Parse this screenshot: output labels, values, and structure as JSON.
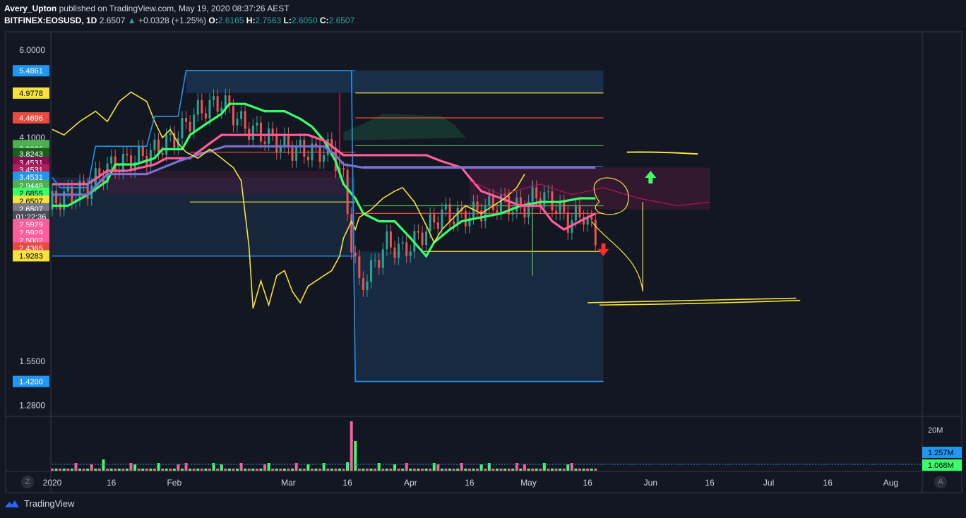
{
  "header": {
    "author": "Avery_Upton",
    "published_text": "published on TradingView.com, May 19, 2020 08:37:26 AEST",
    "symbol": "BITFINEX:EOSUSD, 1D",
    "last": "2.6507",
    "change": "+0.0328 (+1.25%)",
    "open_label": "O:",
    "open": "2.6165",
    "high_label": "H:",
    "high": "2.7563",
    "low_label": "L:",
    "low": "2.6050",
    "close_label": "C:",
    "close": "2.6507"
  },
  "footer": {
    "brand": "TradingView",
    "z_button": "Z",
    "a_button": "A"
  },
  "colors": {
    "background": "#131722",
    "up": "#26a69a",
    "down": "#ef5350",
    "green_line": "#39ff6a",
    "pink_line": "#ff5c9a",
    "purple_line": "#7b6fd0",
    "blue_band": "#2196f3",
    "yellow_line": "#f5e23d",
    "red_line": "#e84a3f"
  },
  "chart_data": {
    "type": "line",
    "symbol": "BITFINEX:EOSUSD",
    "interval": "1D",
    "y_scale": "log",
    "ylim": [
      1.22,
      6.5
    ],
    "y_ticks": [
      "6.0000",
      "4.1000",
      "1.5500",
      "1.2800"
    ],
    "x_ticks": [
      "2020",
      "16",
      "Feb",
      "Mar",
      "16",
      "Apr",
      "16",
      "May",
      "16",
      "Jun",
      "16",
      "Jul",
      "16",
      "Aug"
    ],
    "x_tick_days": [
      1,
      16,
      32,
      61,
      76,
      92,
      107,
      122,
      137,
      153,
      168,
      183,
      198,
      214
    ],
    "xlim": [
      1,
      222
    ],
    "price_tags": [
      {
        "value": 5.4861,
        "label": "5.4861",
        "color": "#2196f3"
      },
      {
        "value": 4.9778,
        "label": "4.9778",
        "color": "#f5e23d"
      },
      {
        "value": 4.4696,
        "label": "4.4696",
        "color": "#e84a3f"
      },
      {
        "value": 3.9613,
        "label": "3.9613",
        "color": "#4caf50"
      },
      {
        "value": 3.9036,
        "label": "3.9036",
        "color": "#4caf50"
      },
      {
        "value": 3.8243,
        "label": "3.8243",
        "color": "#1b5e20"
      },
      {
        "value": 3.68,
        "label": "3.4531",
        "color": "#880e4f"
      },
      {
        "value": 3.565,
        "label": "3.4531",
        "color": "#b01e5c"
      },
      {
        "value": 3.4531,
        "label": "3.4531",
        "color": "#2196f3"
      },
      {
        "value": 3.33,
        "label": "2.9448",
        "color": "#4caf50"
      },
      {
        "value": 3.22,
        "label": "2.6855",
        "color": "#39ff6a"
      },
      {
        "value": 3.11,
        "label": "2.6507",
        "color": "#f5e23d"
      },
      {
        "value": 3.01,
        "label": "2.6507",
        "color": "#787b86"
      },
      {
        "value": 2.91,
        "label": "01:22:36",
        "color": "#4a4e59"
      },
      {
        "value": 2.81,
        "label": "2.5929",
        "color": "#ff5c9a"
      },
      {
        "value": 2.715,
        "label": "2.5929",
        "color": "#ff5c9a"
      },
      {
        "value": 2.625,
        "label": "2.5002",
        "color": "#ff5c9a"
      },
      {
        "value": 2.538,
        "label": "2.4365",
        "color": "#e84a3f"
      },
      {
        "value": 2.453,
        "label": "1.9283",
        "color": "#f5e23d"
      },
      {
        "value": 1.42,
        "label": "1.4200",
        "color": "#2196f3"
      }
    ],
    "series": [
      {
        "name": "",
        "color": "#39ff6a",
        "values": [
          [
            1,
            3.05
          ],
          [
            5,
            3.05
          ],
          [
            10,
            3.2
          ],
          [
            15,
            3.4
          ],
          [
            17,
            3.65
          ],
          [
            22,
            3.65
          ],
          [
            27,
            3.75
          ],
          [
            29,
            3.9
          ],
          [
            34,
            3.9
          ],
          [
            36,
            4.15
          ],
          [
            40,
            4.35
          ],
          [
            44,
            4.55
          ],
          [
            46,
            4.75
          ],
          [
            50,
            4.75
          ],
          [
            55,
            4.6
          ],
          [
            60,
            4.6
          ],
          [
            64,
            4.45
          ],
          [
            67,
            4.3
          ],
          [
            70,
            4.05
          ],
          [
            73,
            3.7
          ],
          [
            75,
            3.35
          ],
          [
            78,
            3.15
          ],
          [
            80,
            2.95
          ],
          [
            84,
            2.85
          ],
          [
            88,
            2.85
          ],
          [
            92,
            2.65
          ],
          [
            96,
            2.45
          ],
          [
            98,
            2.6
          ],
          [
            102,
            2.75
          ],
          [
            105,
            2.85
          ],
          [
            110,
            2.9
          ],
          [
            115,
            2.95
          ],
          [
            120,
            3.05
          ],
          [
            125,
            3.1
          ],
          [
            130,
            3.1
          ],
          [
            135,
            3.15
          ],
          [
            139,
            3.15
          ]
        ]
      },
      {
        "name": "",
        "color": "#ff5c9a",
        "values": [
          [
            1,
            3.35
          ],
          [
            10,
            3.35
          ],
          [
            15,
            3.55
          ],
          [
            20,
            3.55
          ],
          [
            27,
            3.65
          ],
          [
            30,
            3.75
          ],
          [
            36,
            3.75
          ],
          [
            40,
            3.95
          ],
          [
            44,
            4.15
          ],
          [
            50,
            4.15
          ],
          [
            60,
            4.15
          ],
          [
            66,
            4.15
          ],
          [
            70,
            4.05
          ],
          [
            73,
            3.9
          ],
          [
            75,
            3.8
          ],
          [
            78,
            3.8
          ],
          [
            90,
            3.8
          ],
          [
            96,
            3.8
          ],
          [
            100,
            3.7
          ],
          [
            105,
            3.6
          ],
          [
            107,
            3.45
          ],
          [
            110,
            3.25
          ],
          [
            115,
            3.15
          ],
          [
            120,
            3.05
          ],
          [
            125,
            3.05
          ],
          [
            128,
            2.85
          ],
          [
            131,
            2.75
          ],
          [
            135,
            2.85
          ],
          [
            139,
            2.95
          ]
        ]
      },
      {
        "name": "",
        "color": "#7b6fd0",
        "values": [
          [
            1,
            3.2
          ],
          [
            10,
            3.2
          ],
          [
            15,
            3.5
          ],
          [
            25,
            3.5
          ],
          [
            33,
            3.7
          ],
          [
            40,
            3.85
          ],
          [
            45,
            3.95
          ],
          [
            50,
            3.95
          ],
          [
            60,
            3.95
          ],
          [
            70,
            3.95
          ],
          [
            73,
            3.8
          ],
          [
            75,
            3.65
          ],
          [
            80,
            3.6
          ],
          [
            139,
            3.6
          ]
        ]
      },
      {
        "name": "",
        "color": "#f5e23d",
        "values": [
          [
            1,
            4.25
          ],
          [
            4,
            4.15
          ],
          [
            8,
            4.4
          ],
          [
            12,
            4.6
          ],
          [
            15,
            4.4
          ],
          [
            18,
            4.8
          ],
          [
            21,
            5.0
          ],
          [
            25,
            4.8
          ],
          [
            27,
            4.4
          ],
          [
            29,
            4.1
          ],
          [
            31,
            4.25
          ],
          [
            33,
            4.0
          ],
          [
            35,
            3.85
          ],
          [
            38,
            3.75
          ],
          [
            41,
            3.9
          ],
          [
            44,
            3.75
          ],
          [
            47,
            3.6
          ],
          [
            49,
            3.4
          ],
          [
            51,
            2.55
          ],
          [
            52,
            1.95
          ],
          [
            54,
            2.2
          ],
          [
            56,
            1.98
          ],
          [
            58,
            2.25
          ],
          [
            60,
            2.3
          ],
          [
            62,
            2.1
          ],
          [
            64,
            2.0
          ],
          [
            66,
            2.15
          ],
          [
            70,
            2.25
          ],
          [
            72,
            2.3
          ],
          [
            74,
            2.45
          ],
          [
            75,
            2.65
          ],
          [
            77,
            2.85
          ],
          [
            78,
            2.75
          ],
          [
            79,
            2.9
          ],
          [
            82,
            3.0
          ],
          [
            85,
            3.15
          ],
          [
            88,
            3.25
          ],
          [
            90,
            3.3
          ],
          [
            93,
            3.1
          ],
          [
            96,
            2.8
          ],
          [
            98,
            2.6
          ],
          [
            100,
            2.75
          ],
          [
            104,
            2.95
          ],
          [
            106,
            3.05
          ],
          [
            108,
            3.0
          ],
          [
            110,
            2.95
          ],
          [
            113,
            3.05
          ],
          [
            116,
            3.15
          ],
          [
            119,
            3.3
          ],
          [
            121,
            3.5
          ]
        ]
      },
      {
        "name": "",
        "color": "#2196f3",
        "values": [
          [
            1,
            3.45
          ],
          [
            3,
            3.3
          ],
          [
            10,
            3.3
          ],
          [
            12,
            3.95
          ],
          [
            25,
            3.95
          ],
          [
            27,
            4.5
          ],
          [
            33,
            4.5
          ],
          [
            35,
            5.49
          ],
          [
            77,
            5.49
          ],
          [
            78,
            1.42
          ],
          [
            141,
            1.42
          ]
        ]
      }
    ],
    "volume_axis_label": "20M",
    "volume_tags": [
      "1.257M",
      "1.068M"
    ]
  }
}
